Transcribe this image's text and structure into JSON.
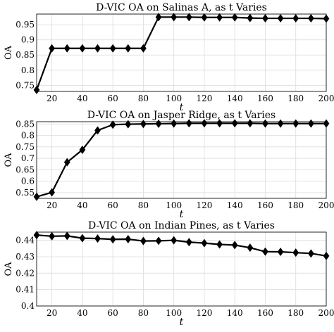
{
  "chart_data": [
    {
      "type": "line",
      "title": "D-VIC OA on Salinas A, as t Varies",
      "xlabel": "t",
      "ylabel": "OA",
      "xlim": [
        10,
        200
      ],
      "ylim": [
        0.73,
        0.985
      ],
      "xticks": [
        "20",
        "40",
        "60",
        "80",
        "100",
        "120",
        "140",
        "160",
        "180",
        "200"
      ],
      "yticks": [
        "0.75",
        "0.8",
        "0.85",
        "0.9",
        "0.95"
      ],
      "grid": true,
      "marker": "diamond",
      "x": [
        10,
        20,
        30,
        40,
        50,
        60,
        70,
        80,
        90,
        100,
        110,
        120,
        130,
        140,
        150,
        160,
        170,
        180,
        190,
        200
      ],
      "values": [
        0.735,
        0.872,
        0.872,
        0.872,
        0.872,
        0.872,
        0.872,
        0.872,
        0.975,
        0.975,
        0.975,
        0.974,
        0.974,
        0.974,
        0.972,
        0.971,
        0.971,
        0.971,
        0.971,
        0.97
      ]
    },
    {
      "type": "line",
      "title": "D-VIC OA on Jasper Ridge, as t Varies",
      "xlabel": "t",
      "ylabel": "OA",
      "xlim": [
        10,
        200
      ],
      "ylim": [
        0.525,
        0.86
      ],
      "xticks": [
        "20",
        "40",
        "60",
        "80",
        "100",
        "120",
        "140",
        "160",
        "180",
        "200"
      ],
      "yticks": [
        "0.55",
        "0.6",
        "0.65",
        "0.7",
        "0.75",
        "0.8",
        "0.85"
      ],
      "grid": true,
      "marker": "diamond",
      "x": [
        10,
        20,
        30,
        40,
        50,
        60,
        70,
        80,
        90,
        100,
        110,
        120,
        130,
        140,
        150,
        160,
        170,
        180,
        190,
        200
      ],
      "values": [
        0.532,
        0.551,
        0.683,
        0.737,
        0.822,
        0.847,
        0.849,
        0.85,
        0.851,
        0.852,
        0.853,
        0.853,
        0.853,
        0.853,
        0.853,
        0.852,
        0.852,
        0.852,
        0.852,
        0.852
      ]
    },
    {
      "type": "line",
      "title": "D-VIC OA on Indian Pines, as t Varies",
      "xlabel": "t",
      "ylabel": "OA",
      "xlim": [
        10,
        200
      ],
      "ylim": [
        0.4,
        0.445
      ],
      "xticks": [
        "20",
        "40",
        "60",
        "80",
        "100",
        "120",
        "140",
        "160",
        "180",
        "200"
      ],
      "yticks": [
        "0.4",
        "0.41",
        "0.42",
        "0.43",
        "0.44"
      ],
      "grid": true,
      "marker": "diamond",
      "x": [
        10,
        20,
        30,
        40,
        50,
        60,
        70,
        80,
        90,
        100,
        110,
        120,
        130,
        140,
        150,
        160,
        170,
        180,
        190,
        200
      ],
      "values": [
        0.4432,
        0.4425,
        0.4427,
        0.4413,
        0.4411,
        0.4406,
        0.4407,
        0.4396,
        0.4397,
        0.44,
        0.4389,
        0.4383,
        0.4375,
        0.4371,
        0.4355,
        0.4331,
        0.433,
        0.4325,
        0.432,
        0.4305
      ]
    }
  ]
}
